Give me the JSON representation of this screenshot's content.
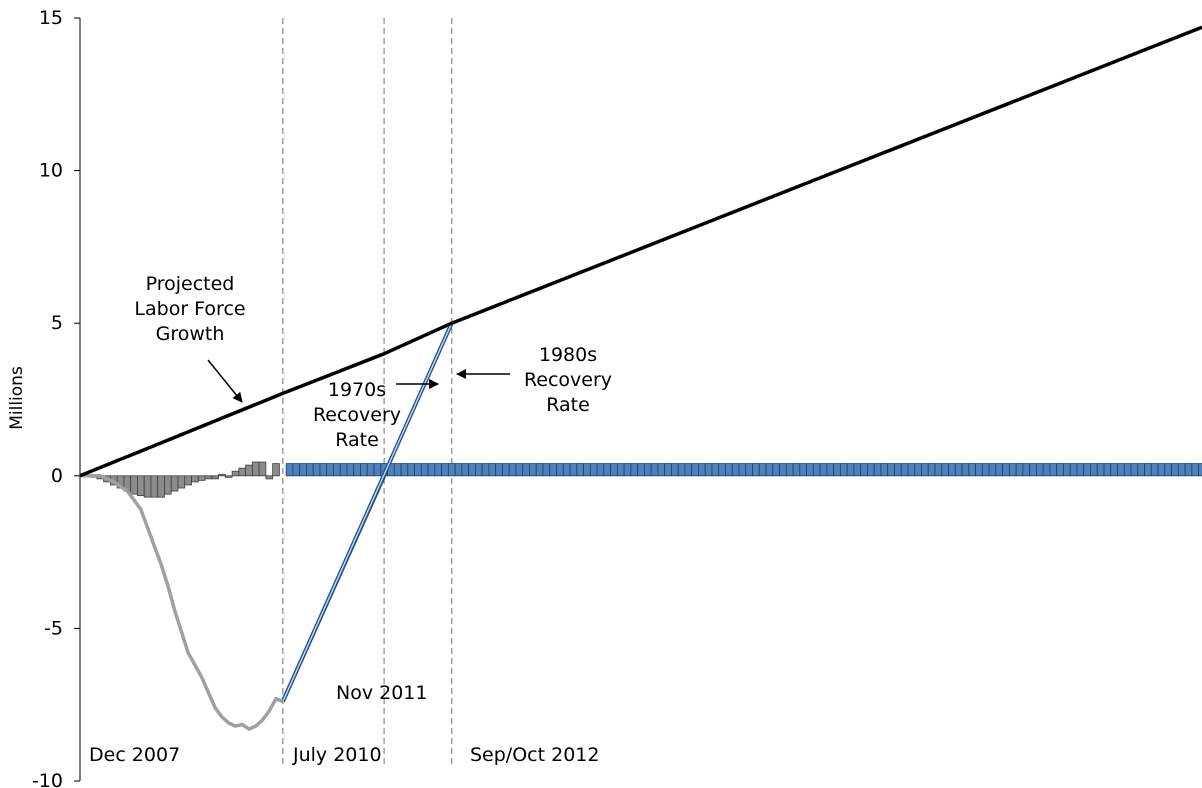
{
  "chart_data": {
    "type": "line",
    "title": "",
    "ylabel": "Millions",
    "ylim": [
      -10,
      15
    ],
    "yticks": [
      -10,
      -5,
      0,
      5,
      10,
      15
    ],
    "xlim": [
      0,
      166
    ],
    "grid": false,
    "colors": {
      "labor_force": "#000000",
      "actual_cumulative": "#a0a0a0",
      "monthly_bars": "#8c8c8c",
      "recovery_1970s": "#1f4e89",
      "recovery_1980s": "#1f4e89",
      "projected_bars": "#4f81bd"
    },
    "series": [
      {
        "key": "labor_force",
        "x": [
          0,
          30,
          45,
          55,
          166
        ],
        "y": [
          0,
          2.7,
          4.0,
          5.0,
          14.7
        ]
      },
      {
        "key": "actual_cumulative",
        "x": [
          0,
          3,
          5,
          7,
          8,
          9,
          10,
          11,
          12,
          13,
          14,
          15,
          16,
          17,
          18,
          19,
          20,
          21,
          22,
          23,
          24,
          25,
          26,
          27,
          28,
          29,
          30
        ],
        "y": [
          0,
          0,
          -0.2,
          -0.5,
          -0.8,
          -1.1,
          -1.7,
          -2.3,
          -2.9,
          -3.6,
          -4.4,
          -5.1,
          -5.8,
          -6.2,
          -6.6,
          -7.1,
          -7.6,
          -7.9,
          -8.1,
          -8.2,
          -8.15,
          -8.3,
          -8.2,
          -8.0,
          -7.7,
          -7.3,
          -7.4
        ]
      },
      {
        "key": "recovery_1970s",
        "x": [
          30,
          45
        ],
        "y": [
          -7.4,
          0
        ]
      },
      {
        "key": "recovery_1980s",
        "x": [
          30,
          55
        ],
        "y": [
          -7.4,
          5.0
        ]
      }
    ],
    "monthly_bars": {
      "x_start": 1,
      "values": [
        0,
        -0.05,
        -0.1,
        -0.2,
        -0.3,
        -0.4,
        -0.5,
        -0.6,
        -0.65,
        -0.7,
        -0.7,
        -0.7,
        -0.6,
        -0.5,
        -0.4,
        -0.3,
        -0.2,
        -0.15,
        -0.1,
        -0.1,
        0.05,
        -0.05,
        0.15,
        0.25,
        0.35,
        0.45,
        0.45,
        -0.1,
        0.4
      ]
    },
    "projected_bars": {
      "x_start": 31,
      "x_end": 166,
      "value": 0.4
    },
    "vertical_markers": [
      {
        "x": 30,
        "label": "July 2010"
      },
      {
        "x": 45,
        "label": "Nov 2011"
      },
      {
        "x": 55,
        "label": "Sep/Oct 2012"
      }
    ],
    "start_label": "Dec 2007",
    "annotations": {
      "labor_force": [
        "Projected",
        "Labor Force",
        "Growth"
      ],
      "recovery_1970s": [
        "1970s",
        "Recovery",
        "Rate"
      ],
      "recovery_1980s": [
        "1980s",
        "Recovery",
        "Rate"
      ]
    }
  }
}
